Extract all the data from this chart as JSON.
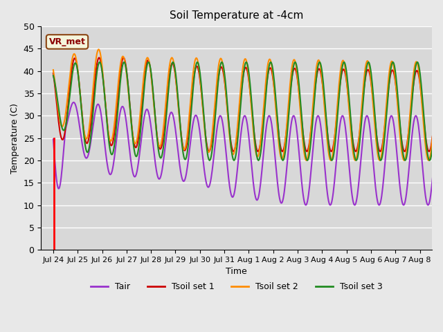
{
  "title": "Soil Temperature at -4cm",
  "xlabel": "Time",
  "ylabel": "Temperature (C)",
  "ylim": [
    0,
    50
  ],
  "background_color": "#e8e8e8",
  "plot_bg_color": "#d8d8d8",
  "grid_color": "#ffffff",
  "annotation_text": "VR_met",
  "annotation_color": "#8B0000",
  "annotation_bg": "#f5f5dc",
  "tair_color": "#9932CC",
  "tsoil1_color": "#CC0000",
  "tsoil2_color": "#FF8C00",
  "tsoil3_color": "#228B22",
  "line_width": 1.5,
  "legend_labels": [
    "Tair",
    "Tsoil set 1",
    "Tsoil set 2",
    "Tsoil set 3"
  ],
  "xtick_labels": [
    "Jul 24",
    "Jul 25",
    "Jul 26",
    "Jul 27",
    "Jul 28",
    "Jul 29",
    "Jul 30",
    "Jul 31",
    "Aug 1",
    "Aug 2",
    "Aug 3",
    "Aug 4",
    "Aug 5",
    "Aug 6",
    "Aug 7",
    "Aug 8"
  ],
  "num_days": 16,
  "num_points": 744
}
